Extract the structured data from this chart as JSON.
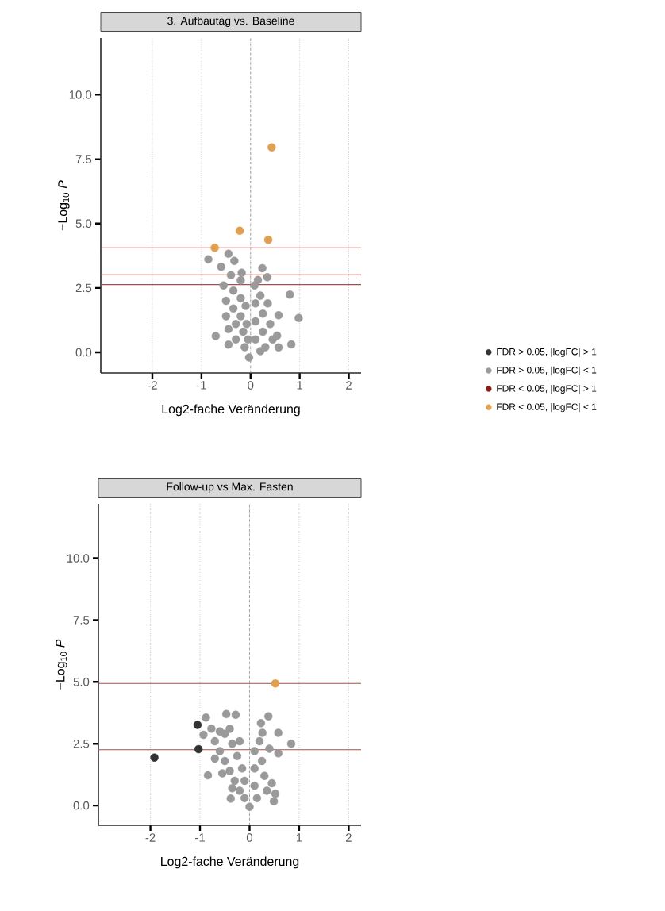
{
  "chart_data": [
    {
      "type": "scatter",
      "title": "3. Aufbautag vs. Baseline",
      "xlabel": "Log2-fache Veränderung",
      "ylabel": "−Log$_{10}$ *P*",
      "xlim": [
        -3.05,
        2.25
      ],
      "ylim": [
        -0.8,
        12.2
      ],
      "xticks": [
        -2,
        -1,
        0,
        1,
        2
      ],
      "yticks": [
        {
          "value": 0,
          "label": "0.0"
        },
        {
          "value": 2.5,
          "label": "2.5"
        },
        {
          "value": 5,
          "label": "5.0"
        },
        {
          "value": 7.5,
          "label": "7.5"
        },
        {
          "value": 10,
          "label": "10.0"
        }
      ],
      "grid": "x",
      "marker": "circle",
      "legend": "right",
      "ref_lines": [
        {
          "axis": "x",
          "value": 0,
          "line_style": "dashed",
          "color": "#9a9a9a"
        },
        {
          "axis": "y",
          "value": 4.06,
          "color": "#a0524d"
        },
        {
          "axis": "y",
          "value": 3.01,
          "color": "#a0524d"
        },
        {
          "axis": "y",
          "value": 2.63,
          "color": "#a0524d"
        }
      ],
      "series": [
        {
          "name": "FDR > 0.05, |logFC| > 1",
          "color": "#333333"
        },
        {
          "name": "FDR > 0.05, |logFC| < 1",
          "color": "#9a9a9a",
          "x": [
            -0.86,
            -0.45,
            -0.33,
            -0.6,
            -0.18,
            0.24,
            0.34,
            0.15,
            0.8,
            0.98,
            0.57,
            -0.71,
            0.83,
            0.57,
            0.54,
            -0.03,
            -0.55,
            -0.5,
            -0.5,
            -0.45,
            -0.45,
            -0.4,
            -0.35,
            -0.35,
            -0.3,
            -0.3,
            -0.2,
            -0.2,
            -0.2,
            -0.15,
            -0.12,
            -0.1,
            -0.08,
            -0.05,
            0.08,
            0.1,
            0.1,
            0.1,
            0.2,
            0.25,
            0.25,
            0.3,
            0.35,
            0.4,
            0.45,
            0.2
          ],
          "values": [
            3.61,
            3.83,
            3.55,
            3.32,
            3.09,
            3.27,
            2.92,
            2.81,
            2.24,
            1.33,
            1.44,
            0.63,
            0.31,
            0.19,
            0.65,
            -0.2,
            2.6,
            2.0,
            1.4,
            0.9,
            0.3,
            3.0,
            2.4,
            1.7,
            1.1,
            0.5,
            2.8,
            2.1,
            1.4,
            0.8,
            0.2,
            1.8,
            1.1,
            0.5,
            2.6,
            1.9,
            1.2,
            0.5,
            2.2,
            1.5,
            0.8,
            0.2,
            1.9,
            1.1,
            0.5,
            0.05
          ]
        },
        {
          "name": "FDR < 0.05, |logFC| > 1",
          "color": "#8b1a1a"
        },
        {
          "name": "FDR < 0.05, |logFC| < 1",
          "color": "#e0a050",
          "x": [
            0.43,
            -0.22,
            0.36,
            -0.73
          ],
          "values": [
            7.96,
            4.72,
            4.37,
            4.06
          ]
        }
      ]
    },
    {
      "type": "scatter",
      "title": "Follow-up vs Max. Fasten",
      "xlabel": "Log2-fache Veränderung",
      "ylabel": "−Log$_{10}$ *P*",
      "xlim": [
        -3.05,
        2.25
      ],
      "ylim": [
        -0.8,
        12.2
      ],
      "xticks": [
        -2,
        -1,
        0,
        1,
        2
      ],
      "yticks": [
        {
          "value": 0,
          "label": "0.0"
        },
        {
          "value": 2.5,
          "label": "2.5"
        },
        {
          "value": 5,
          "label": "5.0"
        },
        {
          "value": 7.5,
          "label": "7.5"
        },
        {
          "value": 10,
          "label": "10.0"
        }
      ],
      "grid": "x",
      "marker": "circle",
      "ref_lines": [
        {
          "axis": "x",
          "value": 0,
          "line_style": "dashed",
          "color": "#9a9a9a"
        },
        {
          "axis": "y",
          "value": 4.94,
          "color": "#a0524d"
        },
        {
          "axis": "y",
          "value": 2.26,
          "color": "#a0524d"
        }
      ],
      "series": [
        {
          "color": "#333333",
          "x": [
            -1.05,
            -1.03,
            -1.92
          ],
          "values": [
            3.26,
            2.28,
            1.94
          ]
        },
        {
          "color": "#9a9a9a",
          "x": [
            -0.88,
            -0.47,
            -0.28,
            -0.93,
            -0.77,
            -0.84,
            -0.38,
            0.0,
            0.38,
            0.23,
            0.58,
            0.84,
            0.58,
            0.49,
            0.52,
            0.26,
            -0.7,
            -0.6,
            -0.5,
            -0.4,
            -0.3,
            -0.2,
            -0.1,
            -0.5,
            -0.35,
            -0.25,
            -0.15,
            -0.1,
            -0.6,
            -0.4,
            -0.2,
            -0.7,
            -0.55,
            -0.35,
            0.1,
            0.1,
            0.1,
            0.15,
            0.25,
            0.3,
            0.35,
            0.2,
            0.4,
            0.45
          ],
          "values": [
            3.56,
            3.7,
            3.67,
            2.86,
            3.11,
            1.22,
            0.28,
            -0.05,
            3.61,
            3.33,
            2.94,
            2.5,
            2.11,
            0.17,
            0.48,
            2.94,
            2.6,
            2.2,
            1.8,
            1.4,
            1.0,
            0.6,
            0.3,
            2.9,
            2.5,
            2.0,
            1.5,
            1.0,
            3.0,
            3.1,
            2.6,
            1.9,
            1.3,
            0.7,
            2.2,
            1.5,
            0.8,
            0.3,
            1.8,
            1.2,
            0.6,
            2.6,
            2.3,
            0.9
          ]
        },
        {
          "color": "#8b1a1a"
        },
        {
          "color": "#e0a050",
          "x": [
            0.52
          ],
          "values": [
            4.94
          ]
        }
      ]
    }
  ]
}
